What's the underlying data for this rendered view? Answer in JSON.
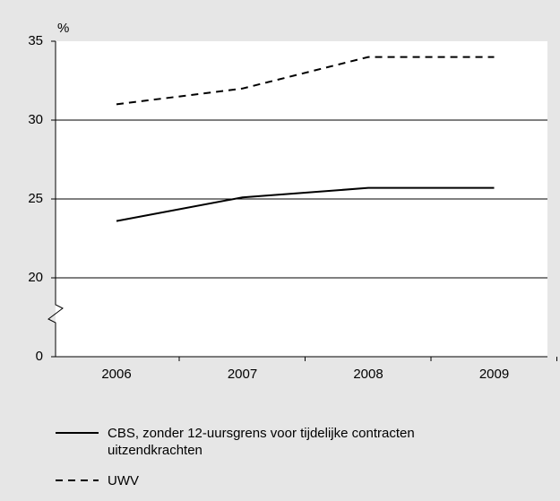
{
  "chart_data": {
    "type": "line",
    "y_label": "%",
    "categories": [
      "2006",
      "2007",
      "2008",
      "2009"
    ],
    "series": [
      {
        "name": "CBS, zonder 12-uursgrens voor tijdelijke contracten uitzendkrachten",
        "color": "#000000",
        "dash": "solid",
        "values": [
          23.6,
          25.1,
          25.7,
          25.7
        ]
      },
      {
        "name": "UWV",
        "color": "#000000",
        "dash": "dashed",
        "values": [
          31,
          32,
          34,
          34
        ]
      }
    ],
    "ylim": [
      0,
      35
    ],
    "yticks": [
      0,
      20,
      25,
      30,
      35
    ],
    "axis_break": true,
    "grid": true
  }
}
